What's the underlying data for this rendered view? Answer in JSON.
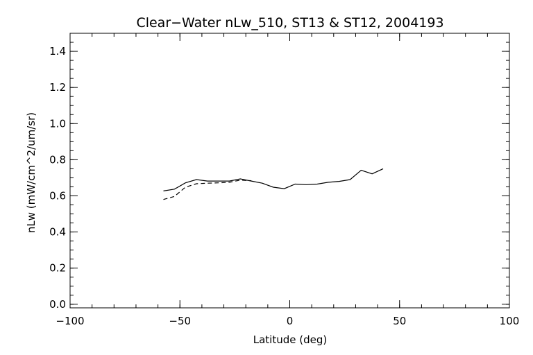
{
  "chart_data": {
    "type": "line",
    "title": "Clear−Water nLw_510, ST13 & ST12, 2004193",
    "xlabel": "Latitude (deg)",
    "ylabel": "nLw (mW/cm^2/um/sr)",
    "xlim": [
      -100,
      100
    ],
    "ylim": [
      -0.02,
      1.5
    ],
    "x_ticks": [
      -100,
      -50,
      0,
      50,
      100
    ],
    "x_tick_labels": [
      "−100",
      "−50",
      "0",
      "50",
      "100"
    ],
    "y_ticks": [
      0.0,
      0.2,
      0.4,
      0.6,
      0.8,
      1.0,
      1.2,
      1.4
    ],
    "y_tick_labels": [
      "0.0",
      "0.2",
      "0.4",
      "0.6",
      "0.8",
      "1.0",
      "1.2",
      "1.4"
    ],
    "x_minor_step": 10,
    "y_minor_step": 0.05,
    "grid": false,
    "legend": "none",
    "series": [
      {
        "style": "solid",
        "color": "#000000",
        "x": [
          -57.5,
          -52.5,
          -47.5,
          -42.5,
          -37.5,
          -32.5,
          -27.5,
          -22.5,
          -17.5,
          -12.5,
          -7.5,
          -2.5,
          2.5,
          7.5,
          12.5,
          17.5,
          22.5,
          27.5,
          32.5,
          37.5,
          42.5
        ],
        "y": [
          0.627,
          0.637,
          0.672,
          0.69,
          0.682,
          0.682,
          0.682,
          0.694,
          0.682,
          0.67,
          0.648,
          0.64,
          0.665,
          0.662,
          0.665,
          0.675,
          0.68,
          0.69,
          0.742,
          0.722,
          0.75
        ]
      },
      {
        "style": "dashed",
        "color": "#000000",
        "x": [
          -57.5,
          -52.5,
          -47.5,
          -42.5,
          -37.5,
          -32.5,
          -27.5,
          -22.5,
          -17.5
        ],
        "y": [
          0.58,
          0.597,
          0.648,
          0.667,
          0.67,
          0.672,
          0.675,
          0.687,
          0.684
        ]
      }
    ]
  }
}
